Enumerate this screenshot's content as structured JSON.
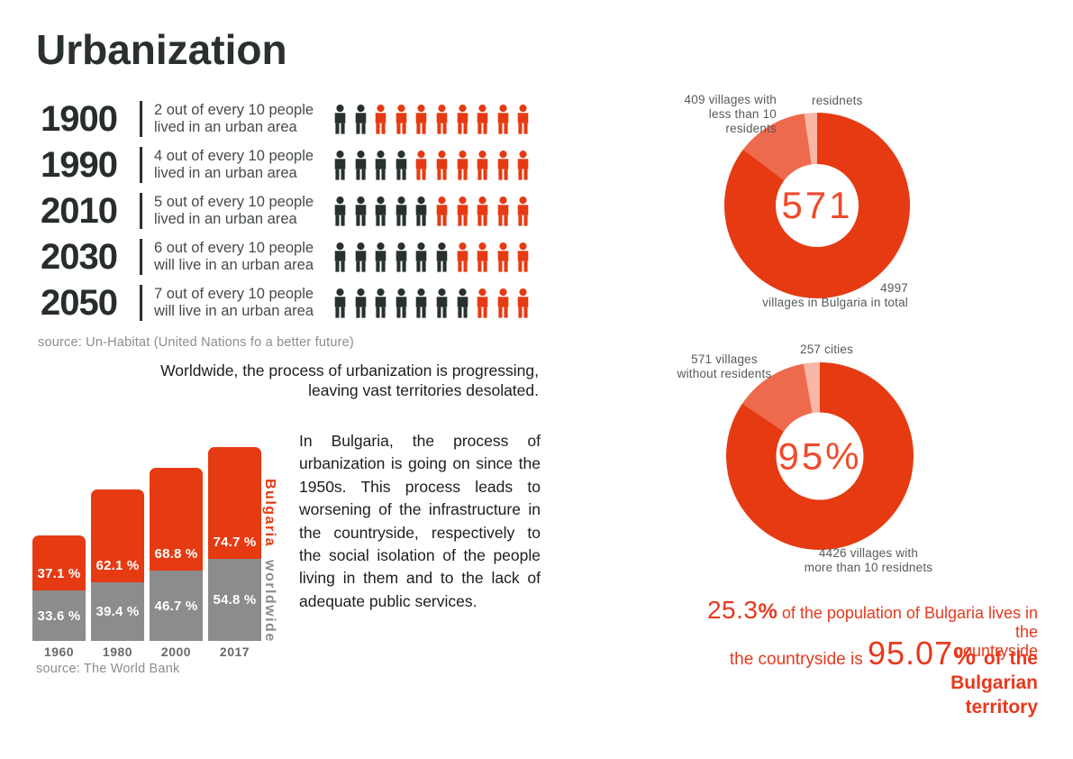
{
  "title": "Urbanization",
  "colors": {
    "dark": "#28312f",
    "accent_red": "#e63a12",
    "medium_slice": "#ee6a4d",
    "light_slice": "#f8b7a6",
    "bar_gray": "#8c8c8c",
    "stat_red": "#e8391d",
    "label_gray": "#58595b"
  },
  "intro": "Worldwide, the process of urbanization is progressing,\nleaving vast territories desolated.",
  "bulgaria_paragraph": "In Bulgaria, the process of urbanization is going on since the 1950s. This process leads to worsening of the infrastructure in the countryside, respectively to the social isolation of the people living in them and to the lack of adequate public services.",
  "chart_data": [
    {
      "id": "urbanization-pictogram",
      "type": "pictogram",
      "unit_total": 10,
      "rows": [
        {
          "year": "1900",
          "urban": 2,
          "description": "2 out of every 10 people\nlived in an urban area"
        },
        {
          "year": "1990",
          "urban": 4,
          "description": "4 out of every 10 people\nlived in an urban area"
        },
        {
          "year": "2010",
          "urban": 5,
          "description": "5 out of every 10 people\nlived in an urban area"
        },
        {
          "year": "2030",
          "urban": 6,
          "description": "6 out of every 10 people\nwill live in an urban area"
        },
        {
          "year": "2050",
          "urban": 7,
          "description": "7 out of every 10 people\nwill live in an urban area"
        }
      ],
      "source": "source: Un-Habitat (United Nations fo a better future)"
    },
    {
      "id": "urban-population-bar",
      "type": "bar",
      "categories": [
        "1960",
        "1980",
        "2000",
        "2017"
      ],
      "series": [
        {
          "name": "Bulgaria",
          "color": "#e63a12",
          "values": [
            37.1,
            62.1,
            68.8,
            74.7
          ]
        },
        {
          "name": "worldwide",
          "color": "#8c8c8c",
          "values": [
            33.6,
            39.4,
            46.7,
            54.8
          ]
        }
      ],
      "value_suffix": " %",
      "ylim": [
        0,
        100
      ],
      "source": "source: The World Bank"
    },
    {
      "id": "villages-total-donut",
      "type": "pie",
      "style": "donut",
      "center_label": "571",
      "slices": [
        {
          "label": "4997\nvillages in Bulgaria in total",
          "value": 4997,
          "color": "#e63a12",
          "start_deg": 0,
          "end_deg": 307
        },
        {
          "label": "409 villages with\nless than 10 residents",
          "value": 409,
          "color": "#ee6a4d",
          "start_deg": 307,
          "end_deg": 352
        },
        {
          "label": "residnets",
          "color": "#f8b7a6",
          "start_deg": 352,
          "end_deg": 360
        }
      ]
    },
    {
      "id": "settlements-donut",
      "type": "pie",
      "style": "donut",
      "center_label": "95%",
      "slices": [
        {
          "label": "4426 villages with\nmore than 10 residnets",
          "value": 4426,
          "color": "#e63a12",
          "start_deg": 0,
          "end_deg": 304
        },
        {
          "label": "571 villages\nwithout residents",
          "value": 571,
          "color": "#ee6a4d",
          "start_deg": 304,
          "end_deg": 350
        },
        {
          "label": "257 cities",
          "value": 257,
          "color": "#f8b7a6",
          "start_deg": 350,
          "end_deg": 360
        }
      ]
    }
  ],
  "stats": [
    {
      "num": "25.3",
      "pct": "%",
      "rest": " of the population of Bulgaria lives in the\ncountryside"
    },
    {
      "pre": "the countryside is ",
      "num": "95.07",
      "pct": "%",
      "bold": " of the Bulgarian\nterritory"
    }
  ]
}
